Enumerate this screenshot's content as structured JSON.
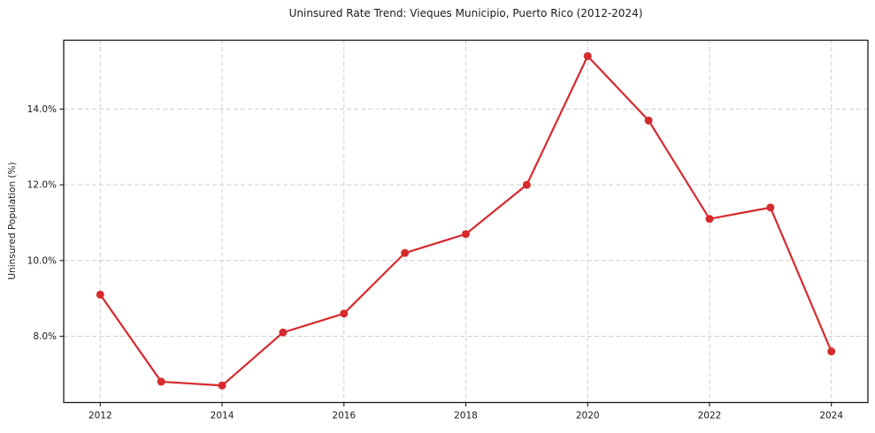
{
  "chart_data": {
    "type": "line",
    "title": "Uninsured Rate Trend: Vieques Municipio, Puerto Rico (2012-2024)",
    "xlabel": "",
    "ylabel": "Uninsured Population (%)",
    "x": [
      2012,
      2013,
      2014,
      2015,
      2016,
      2017,
      2018,
      2019,
      2020,
      2021,
      2022,
      2023,
      2024
    ],
    "values": [
      9.1,
      6.8,
      6.7,
      8.1,
      8.6,
      10.2,
      10.7,
      12.0,
      15.4,
      13.7,
      11.1,
      11.4,
      7.6
    ],
    "xlim": [
      2011.4,
      2024.6
    ],
    "ylim": [
      6.25,
      15.82
    ],
    "xticks": [
      2012,
      2014,
      2016,
      2018,
      2020,
      2022,
      2024
    ],
    "xtick_labels": [
      "2012",
      "2014",
      "2016",
      "2018",
      "2020",
      "2022",
      "2024"
    ],
    "yticks": [
      8.0,
      10.0,
      12.0,
      14.0
    ],
    "ytick_labels": [
      "8.0%",
      "10.0%",
      "12.0%",
      "14.0%"
    ],
    "grid": true,
    "grid_style": "dashed",
    "legend": "none",
    "colors": {
      "line": "#d62a2e",
      "marker": "#d62a2e",
      "grid": "#cfcfcf",
      "spine": "#1a1a1a",
      "text": "#1a1a1a",
      "background": "#ffffff"
    }
  }
}
